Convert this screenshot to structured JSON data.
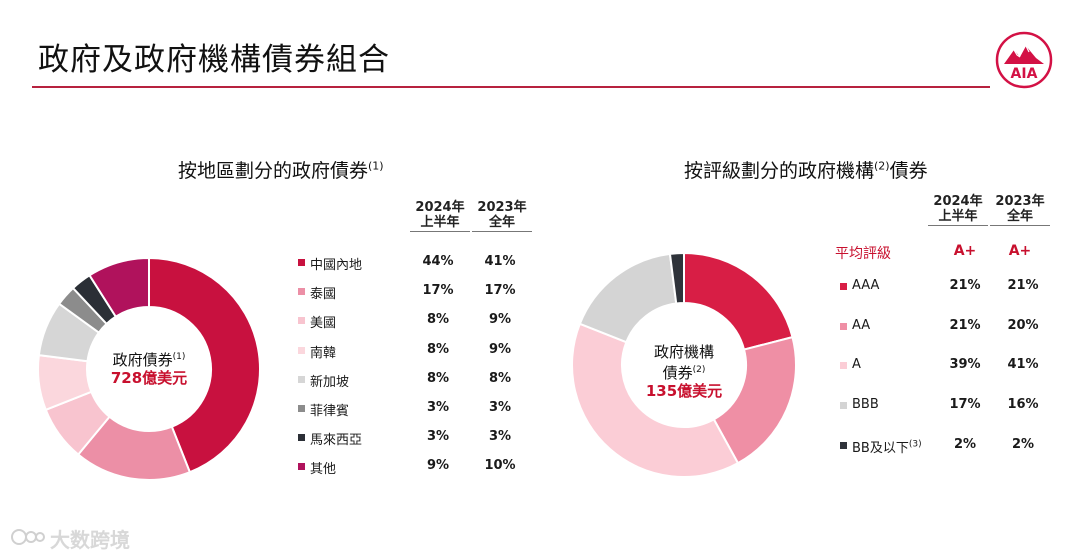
{
  "page": {
    "title": "政府及政府機構債券組合",
    "watermark": "大数跨境"
  },
  "colors": {
    "accent": "#b7223f",
    "region": [
      "#c8113f",
      "#ec8fa6",
      "#f8c4cf",
      "#fbd7dd",
      "#d6d6d6",
      "#8c8c8c",
      "#2b2f36",
      "#b0125c"
    ],
    "rating": [
      "#d81e45",
      "#ef8fa5",
      "#fbcdd6",
      "#d4d4d4",
      "#2f333a"
    ]
  },
  "left": {
    "title": "按地區劃分的政府債券",
    "title_note": "(1)",
    "col1": [
      "2024年",
      "上半年"
    ],
    "col2": [
      "2023年",
      "全年"
    ],
    "center_label": "政府債券",
    "center_note": "(1)",
    "center_amount": "728億美元",
    "rows": [
      {
        "label": "中國內地",
        "v1": "44%",
        "v2": "41%"
      },
      {
        "label": "泰國",
        "v1": "17%",
        "v2": "17%"
      },
      {
        "label": "美國",
        "v1": "8%",
        "v2": "9%"
      },
      {
        "label": "南韓",
        "v1": "8%",
        "v2": "9%"
      },
      {
        "label": "新加坡",
        "v1": "8%",
        "v2": "8%"
      },
      {
        "label": "菲律賓",
        "v1": "3%",
        "v2": "3%"
      },
      {
        "label": "馬來西亞",
        "v1": "3%",
        "v2": "3%"
      },
      {
        "label": "其他",
        "v1": "9%",
        "v2": "10%"
      }
    ]
  },
  "right": {
    "title_a": "按評級劃分的政府機構",
    "title_note": "(2)",
    "title_b": "債券",
    "col1": [
      "2024年",
      "上半年"
    ],
    "col2": [
      "2023年",
      "全年"
    ],
    "avg_label": "平均評級",
    "avg_v1": "A+",
    "avg_v2": "A+",
    "center_line1": "政府機構",
    "center_line2": "債券",
    "center_note": "(2)",
    "center_amount": "135億美元",
    "rows": [
      {
        "label": "AAA",
        "v1": "21%",
        "v2": "21%"
      },
      {
        "label": "AA",
        "v1": "21%",
        "v2": "20%"
      },
      {
        "label": "A",
        "v1": "39%",
        "v2": "41%"
      },
      {
        "label": "BBB",
        "v1": "17%",
        "v2": "16%"
      },
      {
        "label": "BB及以下",
        "note": "(3)",
        "v1": "2%",
        "v2": "2%"
      }
    ]
  },
  "chart_data": [
    {
      "type": "pie",
      "categories": [
        "中國內地",
        "泰國",
        "美國",
        "南韓",
        "新加坡",
        "菲律賓",
        "馬來西亞",
        "其他"
      ],
      "series": [
        {
          "name": "2024年上半年",
          "values": [
            44,
            17,
            8,
            8,
            8,
            3,
            3,
            9
          ]
        },
        {
          "name": "2023年全年",
          "values": [
            41,
            17,
            9,
            9,
            8,
            3,
            3,
            10
          ]
        }
      ],
      "title": "按地區劃分的政府債券"
    },
    {
      "type": "pie",
      "categories": [
        "AAA",
        "AA",
        "A",
        "BBB",
        "BB及以下"
      ],
      "series": [
        {
          "name": "2024年上半年",
          "values": [
            21,
            21,
            39,
            17,
            2
          ]
        },
        {
          "name": "2023年全年",
          "values": [
            21,
            20,
            41,
            16,
            2
          ]
        }
      ],
      "title": "按評級劃分的政府機構債券"
    }
  ]
}
